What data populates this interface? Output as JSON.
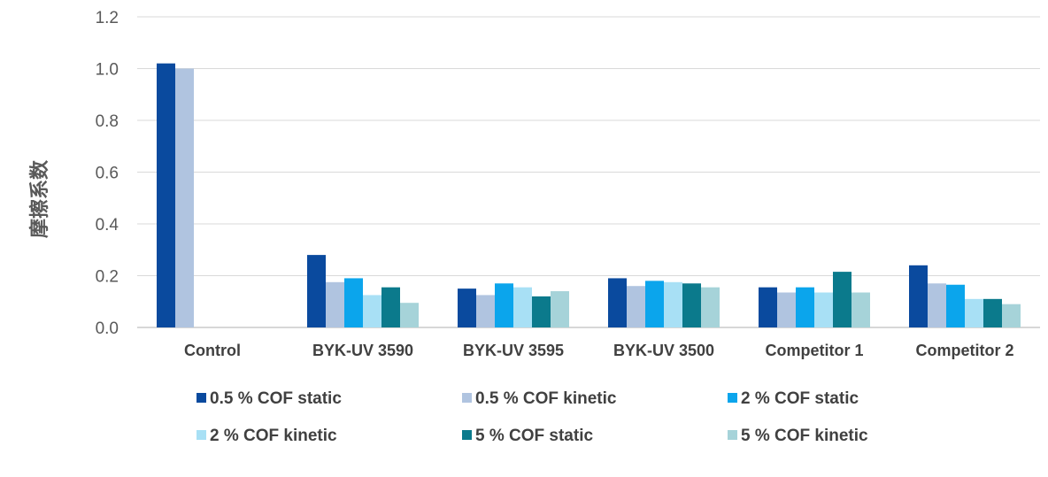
{
  "chart_data": {
    "type": "bar",
    "title": "",
    "xlabel": "",
    "ylabel": "摩擦系数",
    "ylim": [
      0,
      1.2
    ],
    "yticks": [
      "0.0",
      "0.2",
      "0.4",
      "0.6",
      "0.8",
      "1.0",
      "1.2"
    ],
    "grid": true,
    "legend_position": "bottom",
    "categories": [
      "Control",
      "BYK-UV 3590",
      "BYK-UV 3595",
      "BYK-UV 3500",
      "Competitor 1",
      "Competitor 2"
    ],
    "series": [
      {
        "name": "0.5 % COF static",
        "color": "#0a4a9e",
        "values": [
          1.02,
          0.28,
          0.15,
          0.19,
          0.155,
          0.24
        ]
      },
      {
        "name": "0.5 % COF kinetic",
        "color": "#b0c4e0",
        "values": [
          1.0,
          0.175,
          0.125,
          0.16,
          0.135,
          0.17
        ]
      },
      {
        "name": "2 % COF static",
        "color": "#0ba5ec",
        "values": [
          null,
          0.19,
          0.17,
          0.18,
          0.155,
          0.165
        ]
      },
      {
        "name": "2 % COF kinetic",
        "color": "#a8e0f5",
        "values": [
          null,
          0.125,
          0.155,
          0.175,
          0.135,
          0.11
        ]
      },
      {
        "name": "5 % COF static",
        "color": "#0b7a8c",
        "values": [
          null,
          0.155,
          0.12,
          0.17,
          0.215,
          0.11
        ]
      },
      {
        "name": "5 % COF kinetic",
        "color": "#a6d3d9",
        "values": [
          null,
          0.095,
          0.14,
          0.155,
          0.135,
          0.09
        ]
      }
    ]
  }
}
